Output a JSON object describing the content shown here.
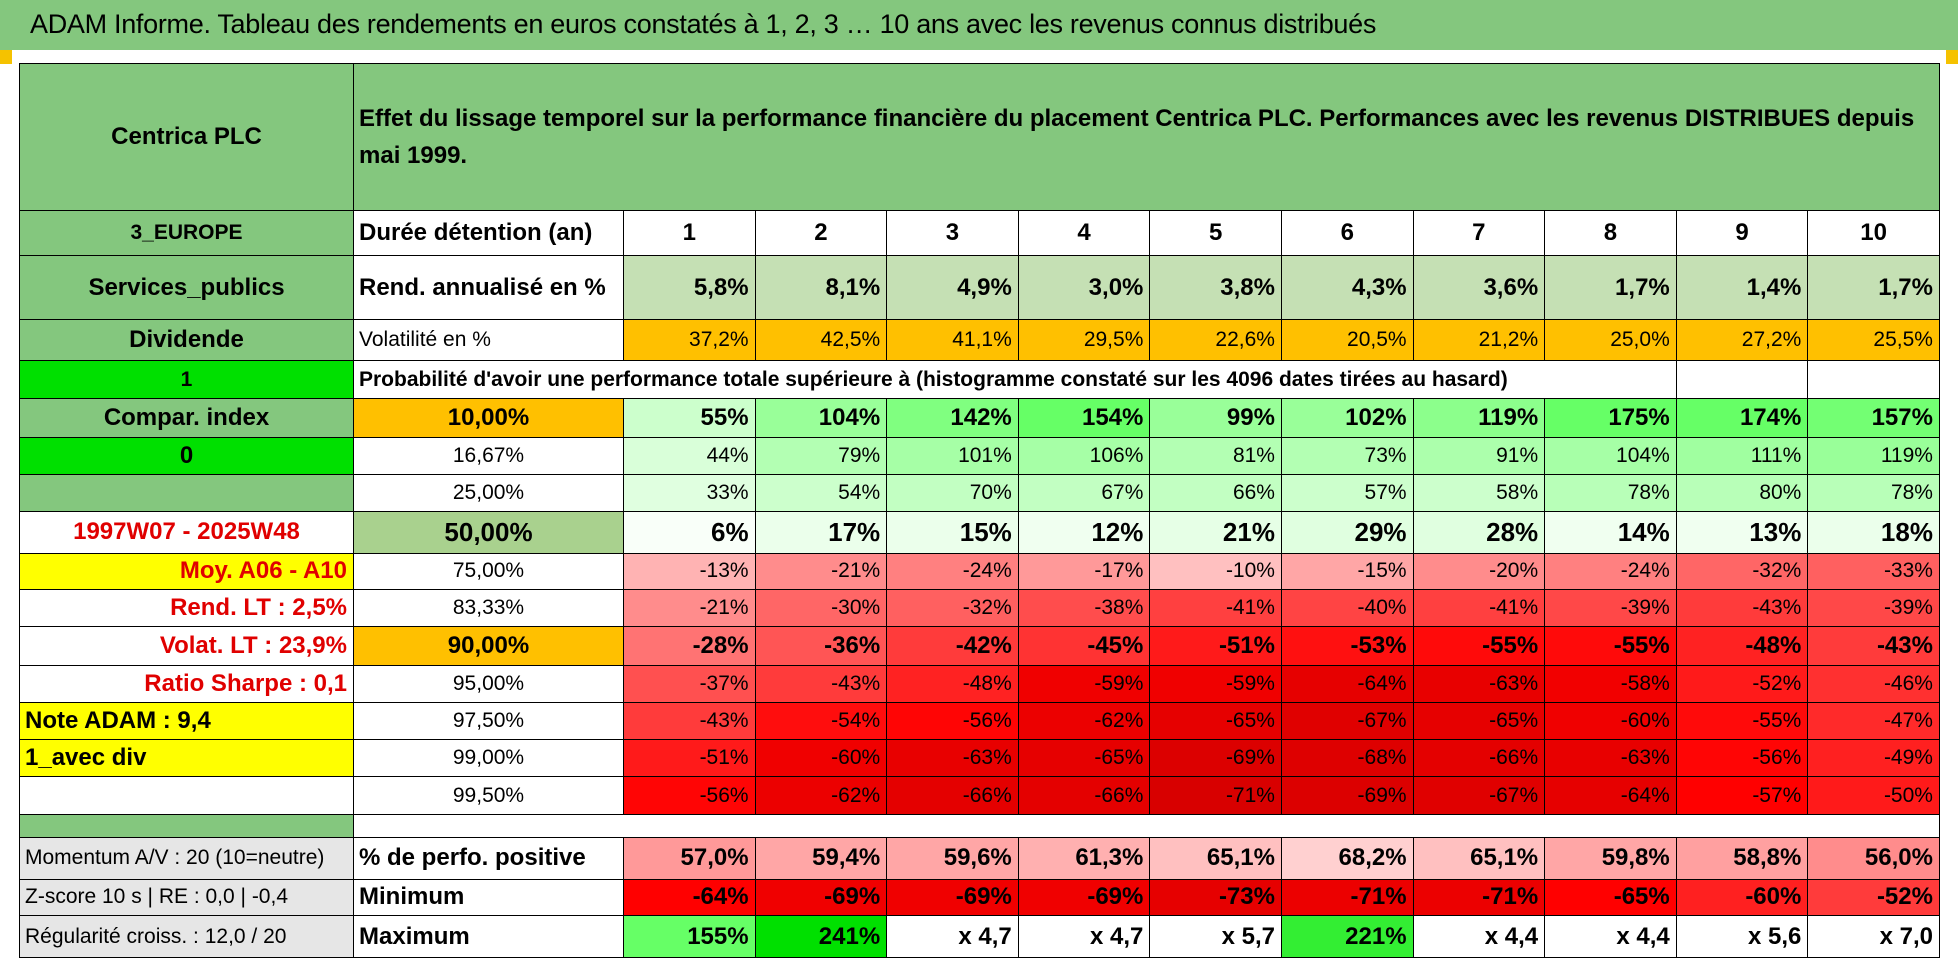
{
  "title": "ADAM Informe. Tableau des rendements en euros constatés à 1, 2, 3 … 10 ans avec les revenus connus distribués",
  "header": {
    "asset_name": "Centrica PLC",
    "description": "Effet du lissage temporel sur la performance financière du placement Centrica PLC. Performances avec les revenus DISTRIBUES depuis mai 1999."
  },
  "left_panel": {
    "region": "3_EUROPE",
    "sector": "Services_publics",
    "income_type": "Dividende",
    "value_1": "1",
    "compar_index": "Compar. index",
    "value_0": "0",
    "period": "1997W07 - 2025W48",
    "moy": "Moy. A06 - A10",
    "rend_lt": "Rend. LT :    2,5%",
    "volat_lt": "Volat. LT :    23,9%",
    "sharpe": "Ratio Sharpe :    0,1",
    "note": "Note ADAM : 9,4",
    "avec_div": "1_avec div"
  },
  "durations": {
    "label": "Durée détention (an)",
    "years": [
      "1",
      "2",
      "3",
      "4",
      "5",
      "6",
      "7",
      "8",
      "9",
      "10"
    ]
  },
  "rend": {
    "label": "Rend. annualisé en %",
    "values": [
      "5,8%",
      "8,1%",
      "4,9%",
      "3,0%",
      "3,8%",
      "4,3%",
      "3,6%",
      "1,7%",
      "1,4%",
      "1,7%"
    ]
  },
  "volat": {
    "label": "Volatilité en %",
    "values": [
      "37,2%",
      "42,5%",
      "41,1%",
      "29,5%",
      "22,6%",
      "20,5%",
      "21,2%",
      "25,0%",
      "27,2%",
      "25,5%"
    ]
  },
  "proba_title": "Probabilité d'avoir une performance totale supérieure à (histogramme constaté sur les 4096 dates tirées au hasard)",
  "quantiles": [
    {
      "p": "10,00%",
      "values": [
        "55%",
        "104%",
        "142%",
        "154%",
        "99%",
        "102%",
        "119%",
        "175%",
        "174%",
        "157%"
      ],
      "colors": [
        "#ccffcc",
        "#99ff99",
        "#80ff80",
        "#66ff66",
        "#99ff99",
        "#99ff99",
        "#8cff8c",
        "#66ff66",
        "#66ff66",
        "#73ff73"
      ]
    },
    {
      "p": "16,67%",
      "values": [
        "44%",
        "79%",
        "101%",
        "106%",
        "81%",
        "73%",
        "91%",
        "104%",
        "111%",
        "119%"
      ],
      "colors": [
        "#d9ffd9",
        "#b3ffb3",
        "#a6ffa6",
        "#a6ffa6",
        "#b3ffb3",
        "#b3ffb3",
        "#acffac",
        "#a6ffa6",
        "#a0ffa0",
        "#99ff99"
      ]
    },
    {
      "p": "25,00%",
      "values": [
        "33%",
        "54%",
        "70%",
        "67%",
        "66%",
        "57%",
        "58%",
        "78%",
        "80%",
        "78%"
      ],
      "colors": [
        "#e0ffe0",
        "#ccffcc",
        "#c2ffc2",
        "#c2ffc2",
        "#c2ffc2",
        "#ccffcc",
        "#ccffcc",
        "#b8ffb8",
        "#b8ffb8",
        "#b8ffb8"
      ]
    },
    {
      "p": "50,00%",
      "values": [
        "6%",
        "17%",
        "15%",
        "12%",
        "21%",
        "29%",
        "28%",
        "14%",
        "13%",
        "18%"
      ],
      "colors": [
        "#f9fff9",
        "#ebffeb",
        "#ebffeb",
        "#f0fff0",
        "#e6ffe6",
        "#e0ffe0",
        "#e0ffe0",
        "#f0fff0",
        "#f0fff0",
        "#ebffeb"
      ]
    },
    {
      "p": "75,00%",
      "values": [
        "-13%",
        "-21%",
        "-24%",
        "-17%",
        "-10%",
        "-15%",
        "-20%",
        "-24%",
        "-32%",
        "-33%"
      ],
      "colors": [
        "#ffb3b3",
        "#ff8c8c",
        "#ff8080",
        "#ff9999",
        "#ffc0c0",
        "#ffa6a6",
        "#ff8c8c",
        "#ff8080",
        "#ff6666",
        "#ff6060"
      ]
    },
    {
      "p": "83,33%",
      "values": [
        "-21%",
        "-30%",
        "-32%",
        "-38%",
        "-41%",
        "-40%",
        "-41%",
        "-39%",
        "-43%",
        "-39%"
      ],
      "colors": [
        "#ff8c8c",
        "#ff6666",
        "#ff6060",
        "#ff4d4d",
        "#ff4040",
        "#ff4444",
        "#ff4040",
        "#ff4848",
        "#ff3b3b",
        "#ff4848"
      ]
    },
    {
      "p": "90,00%",
      "values": [
        "-28%",
        "-36%",
        "-42%",
        "-45%",
        "-51%",
        "-53%",
        "-55%",
        "-55%",
        "-48%",
        "-43%"
      ],
      "colors": [
        "#ff7373",
        "#ff5555",
        "#ff3b3b",
        "#ff3333",
        "#ff1a1a",
        "#ff1010",
        "#ff0a0a",
        "#ff0a0a",
        "#ff2222",
        "#ff3b3b"
      ]
    },
    {
      "p": "95,00%",
      "values": [
        "-37%",
        "-43%",
        "-48%",
        "-59%",
        "-59%",
        "-64%",
        "-63%",
        "-58%",
        "-52%",
        "-46%"
      ],
      "colors": [
        "#ff5050",
        "#ff3b3b",
        "#ff2222",
        "#f00000",
        "#f00000",
        "#e60000",
        "#e80000",
        "#f20000",
        "#ff1a1a",
        "#ff3030"
      ]
    },
    {
      "p": "97,50%",
      "values": [
        "-43%",
        "-54%",
        "-56%",
        "-62%",
        "-65%",
        "-67%",
        "-65%",
        "-60%",
        "-55%",
        "-47%"
      ],
      "colors": [
        "#ff3b3b",
        "#ff0d0d",
        "#ff0505",
        "#ec0000",
        "#e60000",
        "#e00000",
        "#e60000",
        "#f00000",
        "#ff0a0a",
        "#ff2a2a"
      ]
    },
    {
      "p": "99,00%",
      "values": [
        "-51%",
        "-60%",
        "-63%",
        "-65%",
        "-69%",
        "-68%",
        "-66%",
        "-63%",
        "-56%",
        "-49%"
      ],
      "colors": [
        "#ff1a1a",
        "#f00000",
        "#e80000",
        "#e60000",
        "#dc0000",
        "#de0000",
        "#e40000",
        "#e80000",
        "#ff0505",
        "#ff2020"
      ]
    },
    {
      "p": "99,50%",
      "values": [
        "-56%",
        "-62%",
        "-66%",
        "-66%",
        "-71%",
        "-69%",
        "-67%",
        "-64%",
        "-57%",
        "-50%"
      ],
      "colors": [
        "#ff0505",
        "#ec0000",
        "#e40000",
        "#e40000",
        "#d80000",
        "#dc0000",
        "#e00000",
        "#e60000",
        "#ff0000",
        "#ff1a1a"
      ]
    }
  ],
  "bottom": {
    "momentum": "Momentum A/V : 20 (10=neutre)",
    "zscore": "Z-score 10 s | RE : 0,0 | -0,4",
    "regularite": "Régularité croiss. : 12,0 / 20",
    "positive_label": "% de perfo. positive",
    "positive": [
      "57,0%",
      "59,4%",
      "59,6%",
      "61,3%",
      "65,1%",
      "68,2%",
      "65,1%",
      "59,8%",
      "58,8%",
      "56,0%"
    ],
    "positive_colors": [
      "#ff9999",
      "#ffa6a6",
      "#ffa6a6",
      "#ffb0b0",
      "#ffc0c0",
      "#ffd0d0",
      "#ffc0c0",
      "#ffa6a6",
      "#ffa0a0",
      "#ff8c8c"
    ],
    "minimum_label": "Minimum",
    "minimum": [
      "-64%",
      "-69%",
      "-69%",
      "-69%",
      "-73%",
      "-71%",
      "-71%",
      "-65%",
      "-60%",
      "-52%"
    ],
    "minimum_colors": [
      "#ff0000",
      "#f00000",
      "#f00000",
      "#f00000",
      "#e60000",
      "#ec0000",
      "#ec0000",
      "#ff0000",
      "#ff2020",
      "#ff3b3b"
    ],
    "maximum_label": "Maximum",
    "maximum": [
      "155%",
      "241%",
      "x 4,7",
      "x 4,7",
      "x 5,7",
      "221%",
      "x 4,4",
      "x 4,4",
      "x 5,6",
      "x 7,0"
    ],
    "maximum_colors": [
      "#66ff66",
      "#00e000",
      "#ffffff",
      "#ffffff",
      "#ffffff",
      "#33ee33",
      "#ffffff",
      "#ffffff",
      "#ffffff",
      "#ffffff"
    ]
  }
}
